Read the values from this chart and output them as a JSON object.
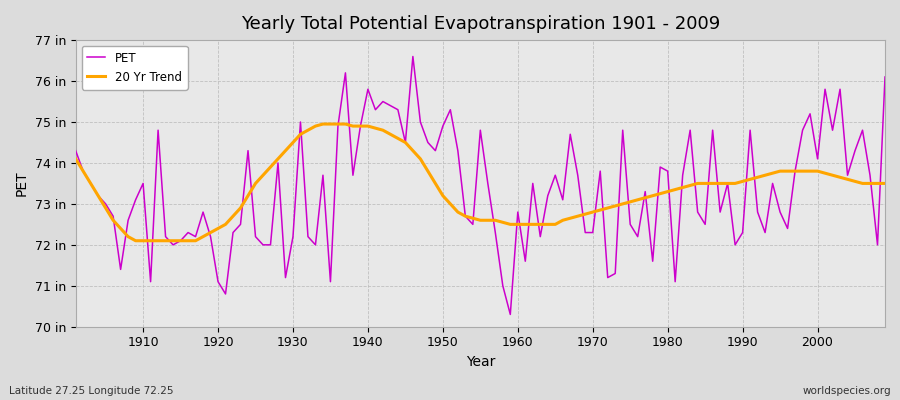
{
  "title": "Yearly Total Potential Evapotranspiration 1901 - 2009",
  "ylabel": "PET",
  "xlabel": "Year",
  "footnote_left": "Latitude 27.25 Longitude 72.25",
  "footnote_right": "worldspecies.org",
  "line_color": "#cc00cc",
  "trend_color": "#FFA500",
  "bg_color": "#eaeaea",
  "ylim": [
    70,
    77
  ],
  "yticks": [
    70,
    71,
    72,
    73,
    74,
    75,
    76,
    77
  ],
  "ytick_labels": [
    "70 in",
    "71 in",
    "72 in",
    "73 in",
    "74 in",
    "75 in",
    "76 in",
    "77 in"
  ],
  "years": [
    1901,
    1902,
    1903,
    1904,
    1905,
    1906,
    1907,
    1908,
    1909,
    1910,
    1911,
    1912,
    1913,
    1914,
    1915,
    1916,
    1917,
    1918,
    1919,
    1920,
    1921,
    1922,
    1923,
    1924,
    1925,
    1926,
    1927,
    1928,
    1929,
    1930,
    1931,
    1932,
    1933,
    1934,
    1935,
    1936,
    1937,
    1938,
    1939,
    1940,
    1941,
    1942,
    1943,
    1944,
    1945,
    1946,
    1947,
    1948,
    1949,
    1950,
    1951,
    1952,
    1953,
    1954,
    1955,
    1956,
    1957,
    1958,
    1959,
    1960,
    1961,
    1962,
    1963,
    1964,
    1965,
    1966,
    1967,
    1968,
    1969,
    1970,
    1971,
    1972,
    1973,
    1974,
    1975,
    1976,
    1977,
    1978,
    1979,
    1980,
    1981,
    1982,
    1983,
    1984,
    1985,
    1986,
    1987,
    1988,
    1989,
    1990,
    1991,
    1992,
    1993,
    1994,
    1995,
    1996,
    1997,
    1998,
    1999,
    2000,
    2001,
    2002,
    2003,
    2004,
    2005,
    2006,
    2007,
    2008,
    2009
  ],
  "pet": [
    74.3,
    73.8,
    73.5,
    73.2,
    73.0,
    72.7,
    71.4,
    72.6,
    73.1,
    73.5,
    71.1,
    74.8,
    72.2,
    72.0,
    72.1,
    72.3,
    72.2,
    72.8,
    72.2,
    71.1,
    70.8,
    72.3,
    72.5,
    74.3,
    72.2,
    72.0,
    72.0,
    74.0,
    71.2,
    72.2,
    75.0,
    72.2,
    72.0,
    73.7,
    71.1,
    74.9,
    76.2,
    73.7,
    74.9,
    75.8,
    75.3,
    75.5,
    75.4,
    75.3,
    74.5,
    76.6,
    75.0,
    74.5,
    74.3,
    74.9,
    75.3,
    74.3,
    72.7,
    72.5,
    74.8,
    73.5,
    72.3,
    71.0,
    70.3,
    72.8,
    71.6,
    73.5,
    72.2,
    73.2,
    73.7,
    73.1,
    74.7,
    73.7,
    72.3,
    72.3,
    73.8,
    71.2,
    71.3,
    74.8,
    72.5,
    72.2,
    73.3,
    71.6,
    73.9,
    73.8,
    71.1,
    73.7,
    74.8,
    72.8,
    72.5,
    74.8,
    72.8,
    73.5,
    72.0,
    72.3,
    74.8,
    72.8,
    72.3,
    73.5,
    72.8,
    72.4,
    73.8,
    74.8,
    75.2,
    74.1,
    75.8,
    74.8,
    75.8,
    73.7,
    74.3,
    74.8,
    73.7,
    72.0,
    76.1
  ],
  "trend": [
    74.1,
    73.8,
    73.5,
    73.2,
    72.9,
    72.6,
    72.4,
    72.2,
    72.1,
    72.1,
    72.1,
    72.1,
    72.1,
    72.1,
    72.1,
    72.1,
    72.1,
    72.2,
    72.3,
    72.4,
    72.5,
    72.7,
    72.9,
    73.2,
    73.5,
    73.7,
    73.9,
    74.1,
    74.3,
    74.5,
    74.7,
    74.8,
    74.9,
    74.95,
    74.95,
    74.95,
    74.95,
    74.9,
    74.9,
    74.9,
    74.85,
    74.8,
    74.7,
    74.6,
    74.5,
    74.3,
    74.1,
    73.8,
    73.5,
    73.2,
    73.0,
    72.8,
    72.7,
    72.65,
    72.6,
    72.6,
    72.6,
    72.55,
    72.5,
    72.5,
    72.5,
    72.5,
    72.5,
    72.5,
    72.5,
    72.6,
    72.65,
    72.7,
    72.75,
    72.8,
    72.85,
    72.9,
    72.95,
    73.0,
    73.05,
    73.1,
    73.15,
    73.2,
    73.25,
    73.3,
    73.35,
    73.4,
    73.45,
    73.5,
    73.5,
    73.5,
    73.5,
    73.5,
    73.5,
    73.55,
    73.6,
    73.65,
    73.7,
    73.75,
    73.8,
    73.8,
    73.8,
    73.8,
    73.8,
    73.8,
    73.75,
    73.7,
    73.65,
    73.6,
    73.55,
    73.5,
    73.5,
    73.5,
    73.5
  ]
}
